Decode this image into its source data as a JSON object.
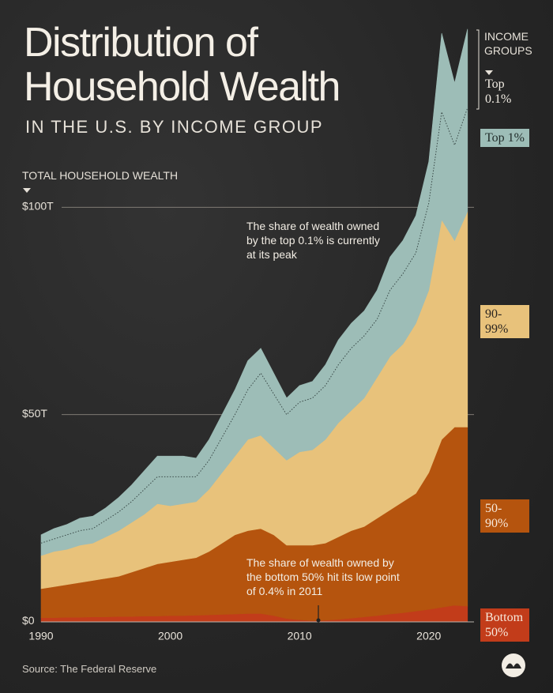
{
  "chart_data": {
    "type": "stacked_area",
    "title": "Distribution of Household Wealth",
    "subtitle": "IN THE U.S. BY INCOME GROUP",
    "y_axis_label": "TOTAL HOUSEHOLD WEALTH",
    "legend_title": "INCOME GROUPS",
    "annotations": [
      "The share of wealth owned by the top 0.1% is currently at its peak",
      "The share of wealth owned by the bottom 50% hit its low point of 0.4% in 2011"
    ],
    "source": "Source: The Federal Reserve",
    "x": [
      1990,
      1991,
      1992,
      1993,
      1994,
      1995,
      1996,
      1997,
      1998,
      1999,
      2000,
      2001,
      2002,
      2003,
      2004,
      2005,
      2006,
      2007,
      2008,
      2009,
      2010,
      2011,
      2012,
      2013,
      2014,
      2015,
      2016,
      2017,
      2018,
      2019,
      2020,
      2021,
      2022,
      2023
    ],
    "xlim": [
      1990,
      2023.5
    ],
    "xticks": [
      1990,
      2000,
      2010,
      2020
    ],
    "ylim": [
      0,
      150
    ],
    "yticks": [
      {
        "value": 0,
        "label": "$0"
      },
      {
        "value": 50,
        "label": "$50T"
      },
      {
        "value": 100,
        "label": "$100T"
      }
    ],
    "grid": true,
    "series": [
      {
        "name": "Bottom 50%",
        "color": "#c23c1a",
        "values": [
          1,
          1,
          1.1,
          1.1,
          1.2,
          1.2,
          1.3,
          1.3,
          1.4,
          1.4,
          1.5,
          1.5,
          1.6,
          1.7,
          1.8,
          1.9,
          2,
          2,
          1.5,
          0.8,
          0.5,
          0.3,
          0.4,
          0.6,
          0.9,
          1.2,
          1.5,
          1.9,
          2.2,
          2.6,
          3,
          3.5,
          4,
          3.8
        ]
      },
      {
        "name": "50-90%",
        "color": "#b5540e",
        "values": [
          7,
          7.5,
          7.9,
          8.4,
          8.8,
          9.3,
          9.7,
          10.7,
          11.6,
          12.6,
          13,
          13.5,
          13.9,
          15.3,
          17.2,
          19.1,
          20,
          20.5,
          19.5,
          17.7,
          18,
          18.2,
          18.6,
          19.9,
          21.1,
          21.8,
          23.5,
          25.1,
          26.8,
          28.4,
          33,
          40.5,
          43,
          43.2
        ]
      },
      {
        "name": "90-99%",
        "color": "#e8c27b",
        "values": [
          8,
          8.5,
          8.5,
          9,
          9,
          10,
          11,
          12,
          13,
          14.5,
          13.5,
          13.5,
          13.5,
          15,
          17,
          19,
          22,
          22.5,
          21,
          20.5,
          22.5,
          23,
          25,
          27.5,
          29,
          31,
          34,
          37,
          38,
          41,
          44,
          53,
          45,
          52
        ]
      },
      {
        "name": "Top 1%",
        "color": "#9dbdb7",
        "values": [
          3,
          3,
          3.5,
          3.5,
          3.5,
          4,
          4.5,
          5,
          6,
          6.5,
          7,
          6.5,
          6,
          7,
          8.5,
          10,
          12,
          15,
          13,
          11,
          12,
          12.5,
          13,
          14,
          15,
          15,
          14,
          16,
          17,
          17,
          21,
          26,
          23,
          25
        ]
      },
      {
        "name": "Top 0.1%",
        "color": "#9dbdb7",
        "values": [
          2,
          2.5,
          2.5,
          3,
          3,
          3,
          3.5,
          4,
          4.5,
          5,
          5,
          5,
          4.5,
          5,
          5.5,
          6,
          7,
          6,
          5,
          4,
          4,
          4,
          5,
          6,
          6,
          6,
          7,
          8,
          8,
          9,
          10,
          19,
          15,
          19
        ]
      }
    ]
  }
}
